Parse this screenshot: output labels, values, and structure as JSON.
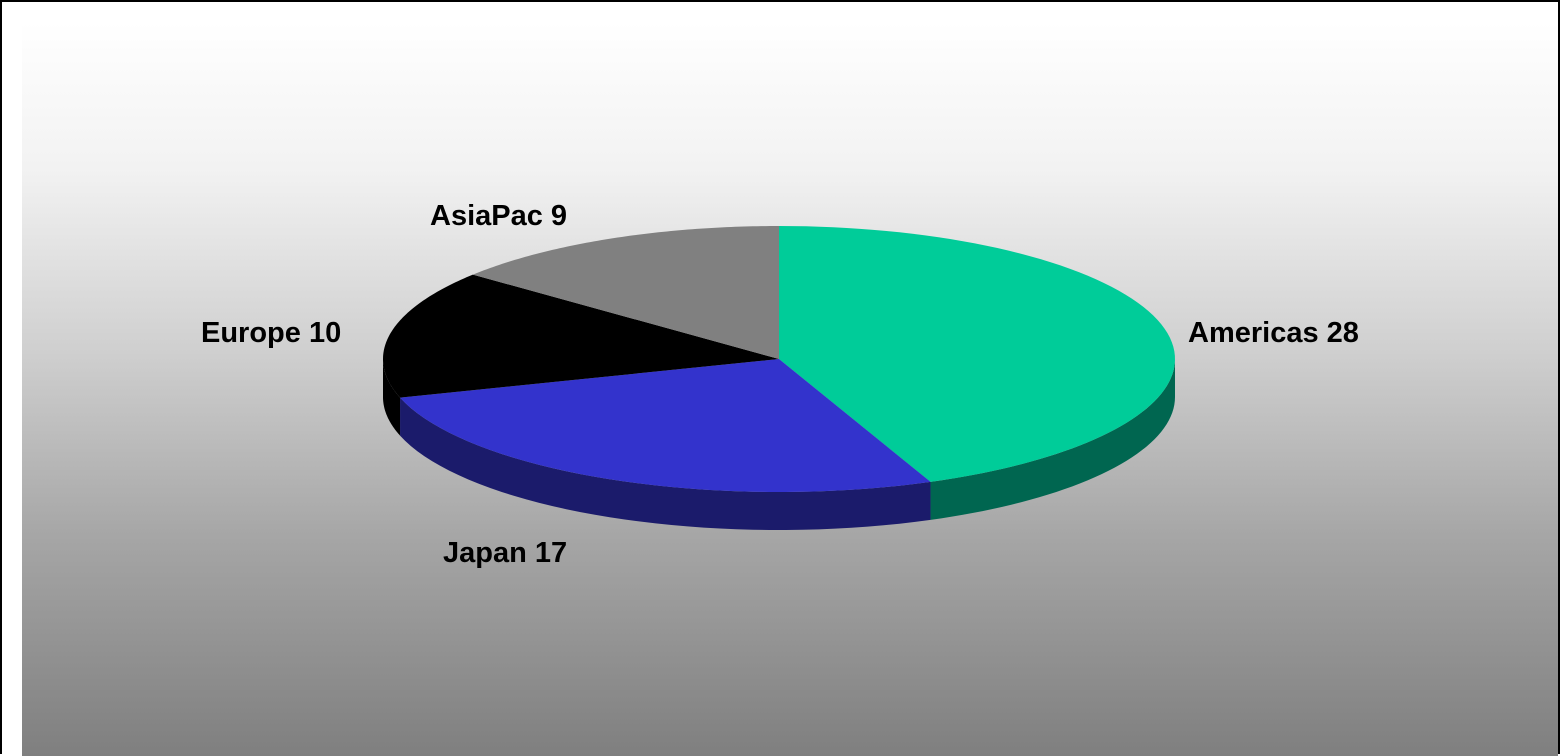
{
  "chart_data": {
    "type": "pie",
    "style": "3d",
    "categories": [
      "Americas",
      "Japan",
      "Europe",
      "AsiaPac"
    ],
    "values": [
      28,
      17,
      10,
      9
    ],
    "labels": [
      "Americas 28",
      "Japan 17",
      "Europe 10",
      "AsiaPac 9"
    ],
    "colors": [
      "#00CC99",
      "#3333CC",
      "#000000",
      "#808080"
    ],
    "side_colors": [
      "#006650",
      "#1B1B6B",
      "#000000",
      "#595959"
    ],
    "start_angle_deg": 90,
    "direction": "clockwise",
    "legend": "none",
    "background": "vertical-gradient white-to-gray"
  }
}
